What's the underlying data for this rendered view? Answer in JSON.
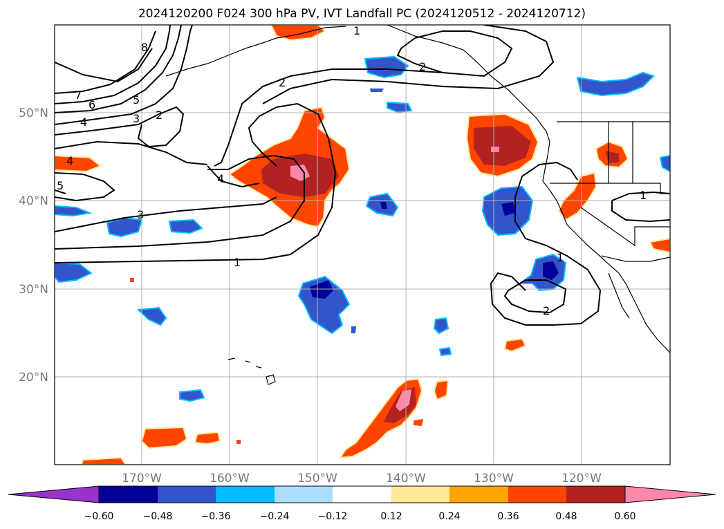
{
  "title": "2024120200 F024 300 hPa PV, IVT Landfall PC (2024120512 - 2024120712)",
  "lat_labels": [
    "50°N",
    "40°N",
    "30°N",
    "20°N"
  ],
  "lon_labels": [
    "170°W",
    "160°W",
    "150°W",
    "140°W",
    "130°W",
    "120°W"
  ],
  "colorbar": {
    "ticks": [
      "−0.60",
      "−0.48",
      "−0.36",
      "−0.24",
      "−0.12",
      "0.12",
      "0.24",
      "0.36",
      "0.48",
      "0.60"
    ],
    "colors": [
      "#9933cc",
      "#000099",
      "#3355cc",
      "#00bbff",
      "#aaddff",
      "#ffffff",
      "#ffe999",
      "#ffa500",
      "#ff4500",
      "#b22222",
      "#ff88aa"
    ]
  },
  "contour_labels": [
    "1",
    "2",
    "2",
    "8",
    "7",
    "6",
    "5",
    "4",
    "3",
    "2",
    "4",
    "4",
    "5",
    "3",
    "1",
    "1",
    "1",
    "2"
  ]
}
